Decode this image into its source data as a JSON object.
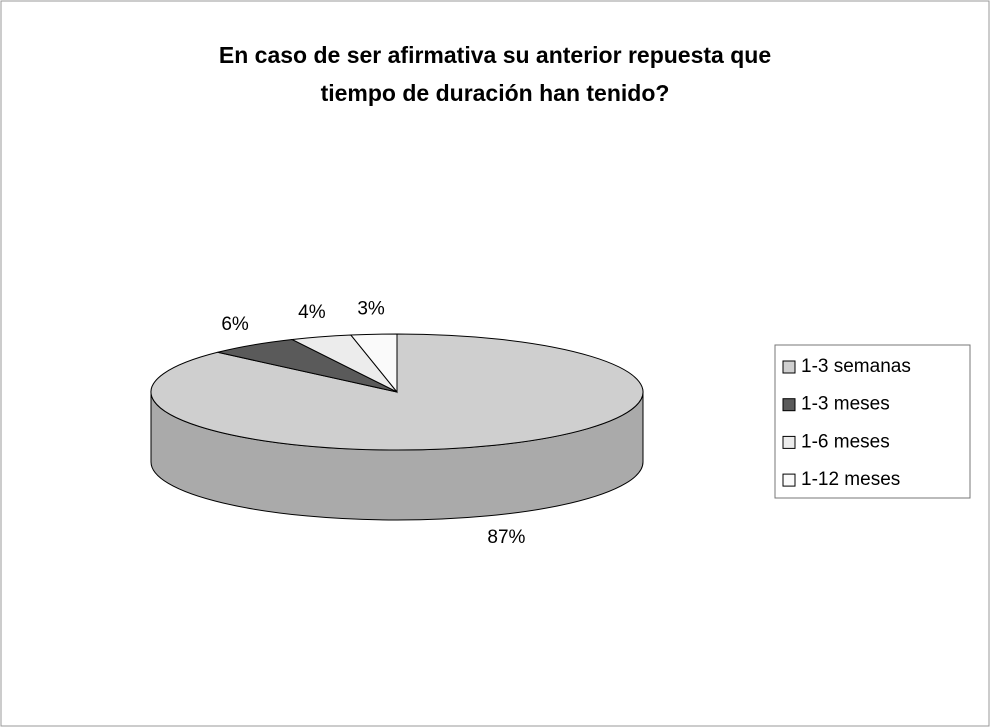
{
  "chart_data": {
    "type": "pie",
    "title": [
      "En caso de ser afirmativa su anterior repuesta que",
      "tiempo de duración han tenido?"
    ],
    "categories": [
      "1-3 semanas",
      "1-3 meses",
      "1-6 meses",
      "1-12 meses"
    ],
    "values": [
      87,
      6,
      4,
      3
    ],
    "value_labels": [
      "87%",
      "6%",
      "4%",
      "3%"
    ],
    "colors": [
      "#cfcfcf",
      "#5a5a5a",
      "#ececec",
      "#fafafa"
    ],
    "legend": "right"
  }
}
